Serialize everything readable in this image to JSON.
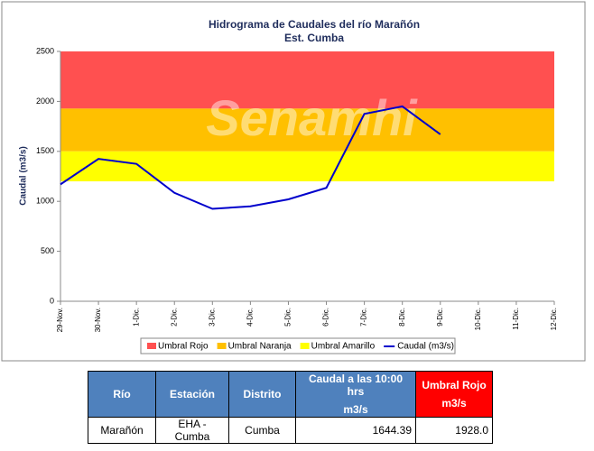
{
  "chart_data": {
    "type": "line",
    "title": "Hidrograma de Caudales del río Marañón",
    "subtitle": "Est. Cumba",
    "watermark": "Senamhi",
    "y_label": "Caudal (m3/s)",
    "categories": [
      "29-Nov.",
      "30-Nov.",
      "1-Dic.",
      "2-Dic.",
      "3-Dic.",
      "4-Dic.",
      "5-Dic.",
      "6-Dic.",
      "7-Dic.",
      "8-Dic.",
      "9-Dic.",
      "10-Dic.",
      "11-Dic.",
      "12-Dic."
    ],
    "thresholds": [
      {
        "name": "Umbral Rojo",
        "color": "#ff5050",
        "value": 1928
      },
      {
        "name": "Umbral Naranja",
        "color": "#ffc000",
        "value": 1500
      },
      {
        "name": "Umbral Amarillo",
        "color": "#ffff00",
        "value": 1200
      }
    ],
    "series": [
      {
        "name": "Caudal (m3/s)",
        "color": "#0000cc",
        "values": [
          1170,
          1425,
          1375,
          1085,
          925,
          950,
          1020,
          1135,
          1875,
          1950,
          1670,
          null,
          null,
          null
        ]
      }
    ],
    "ylim": [
      0,
      2500
    ],
    "yticks": [
      0,
      500,
      1000,
      1500,
      2000,
      2500
    ],
    "grid": false
  },
  "table": {
    "header": [
      "Río",
      "Estación",
      "Distrito",
      [
        "Caudal a las 10:00 hrs",
        "m3/s"
      ],
      [
        "Umbral Rojo",
        "m3/s"
      ]
    ],
    "rows": [
      [
        "Marañón",
        "EHA - Cumba",
        "Cumba",
        "1644.39",
        "1928.0"
      ]
    ]
  }
}
